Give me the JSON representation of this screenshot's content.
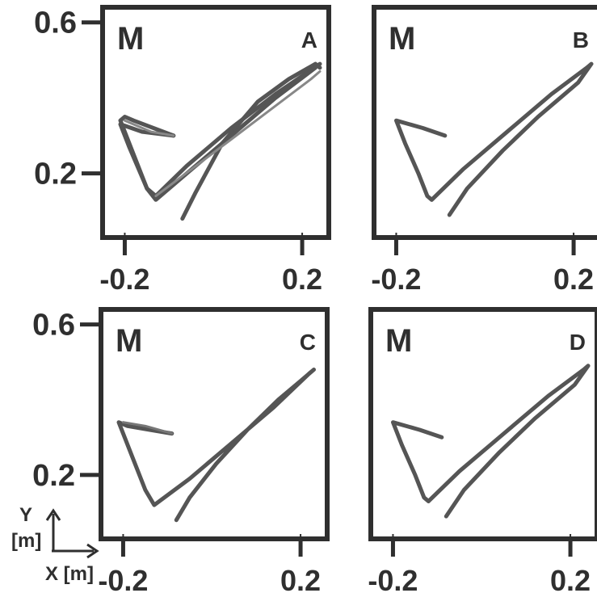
{
  "chart_data": [
    {
      "type": "line",
      "subject_label": "M",
      "panel_label": "A",
      "xlim": [
        -0.25,
        0.26
      ],
      "ylim": [
        0.03,
        0.64
      ],
      "x_ticks": [
        -0.2,
        0.2
      ],
      "x_tick_labels": [
        "-0.2",
        "0.2"
      ],
      "y_ticks": [
        0.6,
        0.2
      ],
      "y_tick_labels": [
        "0.6",
        "0.2"
      ],
      "series": [
        {
          "color": "#555555",
          "points": [
            [
              -0.07,
              0.08
            ],
            [
              -0.04,
              0.15
            ],
            [
              0.02,
              0.28
            ],
            [
              0.1,
              0.39
            ],
            [
              0.17,
              0.45
            ],
            [
              0.23,
              0.49
            ],
            [
              0.24,
              0.48
            ]
          ]
        },
        {
          "color": "#555555",
          "points": [
            [
              0.24,
              0.49
            ],
            [
              0.14,
              0.41
            ],
            [
              0.04,
              0.32
            ],
            [
              -0.06,
              0.22
            ],
            [
              -0.13,
              0.14
            ],
            [
              -0.15,
              0.16
            ],
            [
              -0.18,
              0.25
            ],
            [
              -0.21,
              0.34
            ],
            [
              -0.2,
              0.35
            ],
            [
              -0.18,
              0.34
            ],
            [
              -0.09,
              0.3
            ]
          ]
        },
        {
          "color": "#555555",
          "points": [
            [
              -0.09,
              0.3
            ],
            [
              -0.16,
              0.31
            ],
            [
              -0.21,
              0.33
            ],
            [
              -0.19,
              0.27
            ],
            [
              -0.15,
              0.16
            ],
            [
              -0.13,
              0.13
            ],
            [
              -0.05,
              0.21
            ],
            [
              0.05,
              0.31
            ],
            [
              0.14,
              0.4
            ],
            [
              0.23,
              0.48
            ]
          ]
        },
        {
          "color": "#888888",
          "points": [
            [
              -0.13,
              0.14
            ],
            [
              0.04,
              0.29
            ],
            [
              0.22,
              0.45
            ],
            [
              0.24,
              0.47
            ]
          ]
        },
        {
          "color": "#888888",
          "points": [
            [
              -0.2,
              0.34
            ],
            [
              -0.14,
              0.31
            ],
            [
              -0.09,
              0.3
            ]
          ]
        }
      ]
    },
    {
      "type": "line",
      "subject_label": "M",
      "panel_label": "B",
      "xlim": [
        -0.25,
        0.26
      ],
      "ylim": [
        0.03,
        0.64
      ],
      "x_ticks": [
        -0.2,
        0.2
      ],
      "x_tick_labels": [
        "-0.2",
        "0.2"
      ],
      "y_ticks": [],
      "y_tick_labels": [],
      "series": [
        {
          "color": "#555555",
          "points": [
            [
              -0.09,
              0.3
            ],
            [
              -0.14,
              0.32
            ],
            [
              -0.2,
              0.34
            ],
            [
              -0.18,
              0.28
            ],
            [
              -0.15,
              0.2
            ],
            [
              -0.13,
              0.14
            ],
            [
              -0.12,
              0.13
            ],
            [
              -0.05,
              0.21
            ],
            [
              0.05,
              0.31
            ],
            [
              0.15,
              0.41
            ],
            [
              0.23,
              0.48
            ],
            [
              0.24,
              0.49
            ],
            [
              0.21,
              0.44
            ],
            [
              0.12,
              0.35
            ],
            [
              0.04,
              0.26
            ],
            [
              -0.04,
              0.16
            ],
            [
              -0.08,
              0.09
            ]
          ]
        }
      ]
    },
    {
      "type": "line",
      "subject_label": "M",
      "panel_label": "C",
      "xlim": [
        -0.25,
        0.26
      ],
      "ylim": [
        0.03,
        0.64
      ],
      "x_ticks": [
        -0.2,
        0.2
      ],
      "x_tick_labels": [
        "-0.2",
        "0.2"
      ],
      "y_ticks": [
        0.6,
        0.2
      ],
      "y_tick_labels": [
        "0.6",
        "0.2"
      ],
      "series": [
        {
          "color": "#555555",
          "points": [
            [
              -0.08,
              0.08
            ],
            [
              -0.05,
              0.14
            ],
            [
              0.01,
              0.23
            ],
            [
              0.08,
              0.32
            ],
            [
              0.15,
              0.4
            ],
            [
              0.2,
              0.45
            ],
            [
              0.23,
              0.48
            ],
            [
              0.22,
              0.47
            ],
            [
              0.14,
              0.38
            ],
            [
              0.04,
              0.28
            ],
            [
              -0.05,
              0.19
            ],
            [
              -0.13,
              0.12
            ],
            [
              -0.15,
              0.16
            ],
            [
              -0.18,
              0.25
            ],
            [
              -0.21,
              0.34
            ],
            [
              -0.19,
              0.33
            ],
            [
              -0.14,
              0.32
            ],
            [
              -0.09,
              0.31
            ]
          ]
        },
        {
          "color": "#777777",
          "points": [
            [
              -0.2,
              0.34
            ],
            [
              -0.15,
              0.33
            ],
            [
              -0.09,
              0.31
            ]
          ]
        }
      ]
    },
    {
      "type": "line",
      "subject_label": "M",
      "panel_label": "D",
      "xlim": [
        -0.25,
        0.26
      ],
      "ylim": [
        0.03,
        0.64
      ],
      "x_ticks": [
        -0.2,
        0.2
      ],
      "x_tick_labels": [
        "-0.2",
        "0.2"
      ],
      "y_ticks": [],
      "y_tick_labels": [],
      "series": [
        {
          "color": "#555555",
          "points": [
            [
              -0.09,
              0.3
            ],
            [
              -0.14,
              0.32
            ],
            [
              -0.2,
              0.34
            ],
            [
              -0.18,
              0.28
            ],
            [
              -0.15,
              0.2
            ],
            [
              -0.13,
              0.14
            ],
            [
              -0.12,
              0.13
            ],
            [
              -0.05,
              0.21
            ],
            [
              0.05,
              0.31
            ],
            [
              0.15,
              0.41
            ],
            [
              0.23,
              0.48
            ],
            [
              0.24,
              0.49
            ],
            [
              0.21,
              0.44
            ],
            [
              0.12,
              0.35
            ],
            [
              0.04,
              0.26
            ],
            [
              -0.04,
              0.16
            ],
            [
              -0.08,
              0.09
            ]
          ]
        }
      ]
    }
  ],
  "axis_indicator": {
    "y_label": "Y",
    "y_unit": "[m]",
    "x_label": "X [m]"
  }
}
